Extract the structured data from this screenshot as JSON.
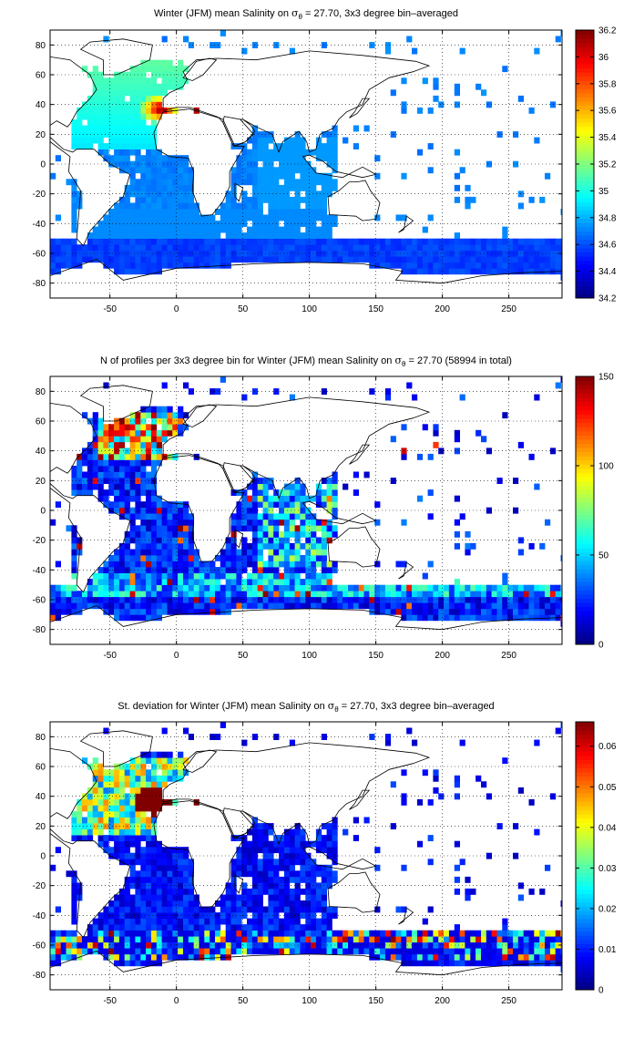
{
  "figure": {
    "map_grid": {
      "xlim": [
        -95,
        290
      ],
      "ylim": [
        -90,
        90
      ],
      "xticks": [
        -50,
        0,
        50,
        100,
        150,
        200,
        250
      ],
      "yticks": [
        -80,
        -60,
        -40,
        -20,
        0,
        20,
        40,
        60,
        80
      ],
      "grid": "dotted"
    },
    "colormap": "jet",
    "colors": {
      "land_outline": "#000000",
      "ocean_background": "#ffffff",
      "frame": "#000000"
    }
  },
  "chart_data": [
    {
      "type": "heatmap",
      "title_prefix": "Winter (JFM) mean Salinity on ",
      "title_sigma": "σ",
      "title_sub": "θ",
      "title_suffix": " = 27.70, 3x3 degree bin–averaged",
      "colorbar": {
        "min": 34.2,
        "max": 36.2,
        "ticks": [
          "34.2",
          "34.4",
          "34.6",
          "34.8",
          "35",
          "35.2",
          "35.4",
          "35.6",
          "35.8",
          "36",
          "36.2"
        ]
      },
      "xticks": [
        "-50",
        "0",
        "50",
        "100",
        "150",
        "200",
        "250"
      ],
      "yticks": [
        "-80",
        "-60",
        "-40",
        "-20",
        "0",
        "20",
        "40",
        "60",
        "80"
      ]
    },
    {
      "type": "heatmap",
      "title_prefix": "N of profiles per 3x3 degree bin for Winter (JFM) mean Salinity on ",
      "title_sigma": "σ",
      "title_sub": "θ",
      "title_suffix": " = 27.70 (58994 in total)",
      "colorbar": {
        "min": 0,
        "max": 150,
        "ticks": [
          "0",
          "50",
          "100",
          "150"
        ]
      },
      "xticks": [
        "-50",
        "0",
        "50",
        "100",
        "150",
        "200",
        "250"
      ],
      "yticks": [
        "-80",
        "-60",
        "-40",
        "-20",
        "0",
        "20",
        "40",
        "60",
        "80"
      ]
    },
    {
      "type": "heatmap",
      "title_prefix": "St. deviation for Winter (JFM) mean Salinity on ",
      "title_sigma": "σ",
      "title_sub": "θ",
      "title_suffix": " = 27.70, 3x3 degree bin–averaged",
      "colorbar": {
        "min": 0,
        "max": 0.066,
        "ticks": [
          "0",
          "0.01",
          "0.02",
          "0.03",
          "0.04",
          "0.05",
          "0.06"
        ]
      },
      "xticks": [
        "-50",
        "0",
        "50",
        "100",
        "150",
        "200",
        "250"
      ],
      "yticks": [
        "-80",
        "-60",
        "-40",
        "-20",
        "0",
        "20",
        "40",
        "60",
        "80"
      ]
    }
  ]
}
